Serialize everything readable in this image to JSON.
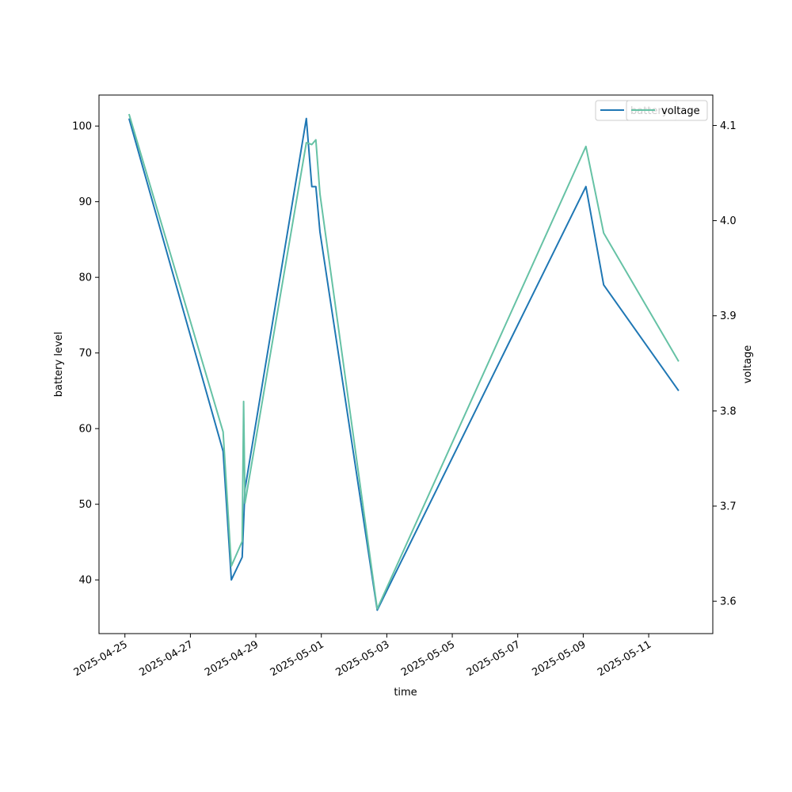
{
  "chart_data": {
    "type": "line",
    "xlabel": "time",
    "ylabel": "battery level",
    "y2label": "voltage",
    "xlim": [
      "2025-04-24T05:00",
      "2025-05-12T23:00"
    ],
    "ylim": [
      32.9,
      104.1
    ],
    "y2lim": [
      3.566,
      4.132
    ],
    "x_ticks": [
      "2025-04-25",
      "2025-04-27",
      "2025-04-29",
      "2025-05-01",
      "2025-05-03",
      "2025-05-05",
      "2025-05-07",
      "2025-05-09",
      "2025-05-11"
    ],
    "y_ticks": [
      40,
      50,
      60,
      70,
      80,
      90,
      100
    ],
    "y2_ticks": [
      "3.6",
      "3.7",
      "3.8",
      "3.9",
      "4.0",
      "4.1"
    ],
    "grid": false,
    "legend": "top-right",
    "series": [
      {
        "name": "battery",
        "axis": "left",
        "color": "#1f77b4",
        "points": [
          [
            "2025-04-25T03:00",
            101
          ],
          [
            "2025-04-28T00:00",
            57
          ],
          [
            "2025-04-28T06:00",
            40
          ],
          [
            "2025-04-28T14:00",
            43
          ],
          [
            "2025-04-28T16:00",
            52
          ],
          [
            "2025-04-30T13:00",
            101
          ],
          [
            "2025-04-30T17:00",
            92
          ],
          [
            "2025-04-30T20:00",
            92
          ],
          [
            "2025-04-30T23:00",
            86
          ],
          [
            "2025-05-02T17:00",
            36
          ],
          [
            "2025-05-09T02:00",
            92
          ],
          [
            "2025-05-09T15:00",
            79
          ],
          [
            "2025-05-11T22:00",
            65
          ]
        ]
      },
      {
        "name": "voltage",
        "axis": "right",
        "color": "#66c2a5",
        "points": [
          [
            "2025-04-25T03:00",
            4.112
          ],
          [
            "2025-04-28T00:00",
            3.778
          ],
          [
            "2025-04-28T06:00",
            3.637
          ],
          [
            "2025-04-28T14:00",
            3.663
          ],
          [
            "2025-04-28T15:00",
            3.81
          ],
          [
            "2025-04-28T16:00",
            3.703
          ],
          [
            "2025-04-30T13:00",
            4.082
          ],
          [
            "2025-04-30T17:00",
            4.08
          ],
          [
            "2025-04-30T20:00",
            4.085
          ],
          [
            "2025-04-30T23:00",
            4.028
          ],
          [
            "2025-05-02T17:00",
            3.592
          ],
          [
            "2025-05-09T02:00",
            4.078
          ],
          [
            "2025-05-09T15:00",
            3.987
          ],
          [
            "2025-05-11T22:00",
            3.852
          ]
        ]
      }
    ]
  }
}
